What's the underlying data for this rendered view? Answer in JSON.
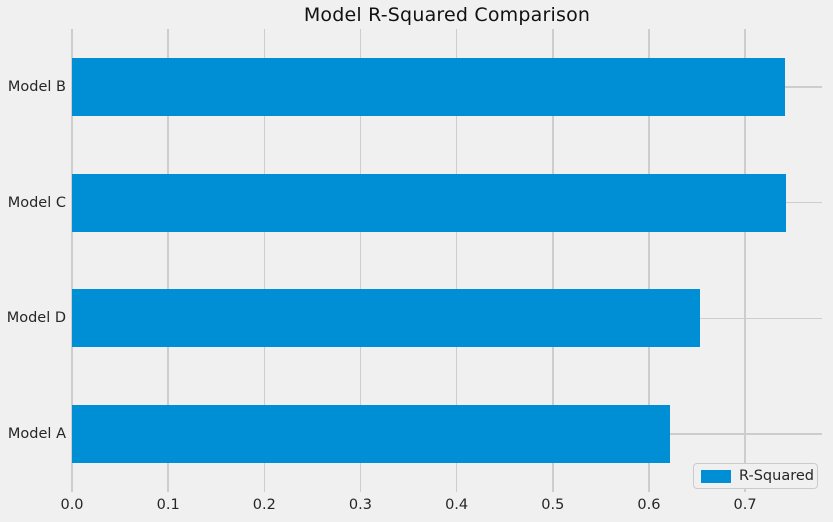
{
  "title": "Model R-Squared Comparison",
  "legend": {
    "label": "R-Squared"
  },
  "chart_data": {
    "type": "bar",
    "orientation": "horizontal",
    "title": "Model R-Squared Comparison",
    "categories": [
      "Model B",
      "Model C",
      "Model D",
      "Model A"
    ],
    "values": [
      0.742,
      0.743,
      0.653,
      0.622
    ],
    "series_name": "R-Squared",
    "xlabel": "",
    "ylabel": "",
    "xlim": [
      0,
      0.78
    ],
    "xticks": [
      0.0,
      0.1,
      0.2,
      0.3,
      0.4,
      0.5,
      0.6,
      0.7
    ],
    "xtick_labels": [
      "0.0",
      "0.1",
      "0.2",
      "0.3",
      "0.4",
      "0.5",
      "0.6",
      "0.7"
    ],
    "grid": true,
    "legend_position": "lower right",
    "colors": {
      "bar": "#008fd5",
      "background": "#f0f0f0",
      "gridline": "#cdcdcd",
      "text": "#262626"
    }
  }
}
